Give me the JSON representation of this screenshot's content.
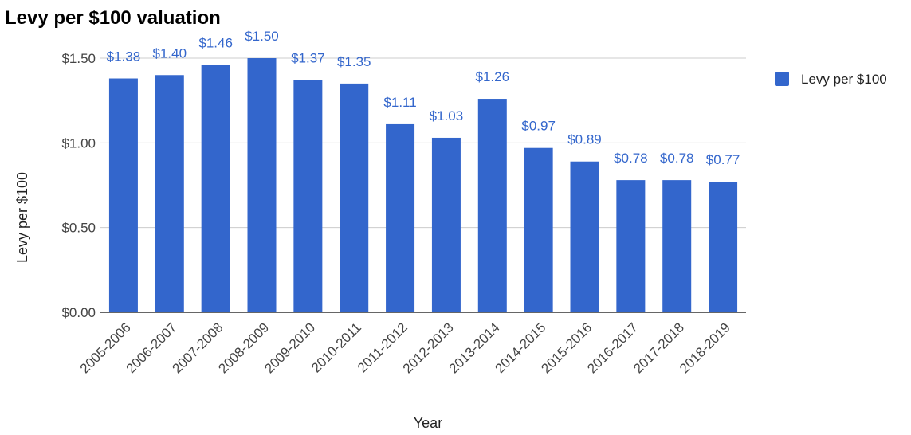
{
  "chart_data": {
    "type": "bar",
    "title": "Levy per $100 valuation",
    "xlabel": "Year",
    "ylabel": "Levy per $100",
    "categories": [
      "2005-2006",
      "2006-2007",
      "2007-2008",
      "2008-2009",
      "2009-2010",
      "2010-2011",
      "2011-2012",
      "2012-2013",
      "2013-2014",
      "2014-2015",
      "2015-2016",
      "2016-2017",
      "2017-2018",
      "2018-2019"
    ],
    "series": [
      {
        "name": "Levy per $100",
        "values": [
          1.38,
          1.4,
          1.46,
          1.5,
          1.37,
          1.35,
          1.11,
          1.03,
          1.26,
          0.97,
          0.89,
          0.78,
          0.78,
          0.77
        ],
        "labels": [
          "$1.38",
          "$1.40",
          "$1.46",
          "$1.50",
          "$1.37",
          "$1.35",
          "$1.11",
          "$1.03",
          "$1.26",
          "$0.97",
          "$0.89",
          "$0.78",
          "$0.78",
          "$0.77"
        ],
        "color": "#3366cc"
      }
    ],
    "yticks": [
      0,
      0.5,
      1.0,
      1.5
    ],
    "ytick_labels": [
      "$0.00",
      "$0.50",
      "$1.00",
      "$1.50"
    ],
    "ylim": [
      0,
      1.5
    ],
    "grid": true,
    "legend_position": "right"
  }
}
